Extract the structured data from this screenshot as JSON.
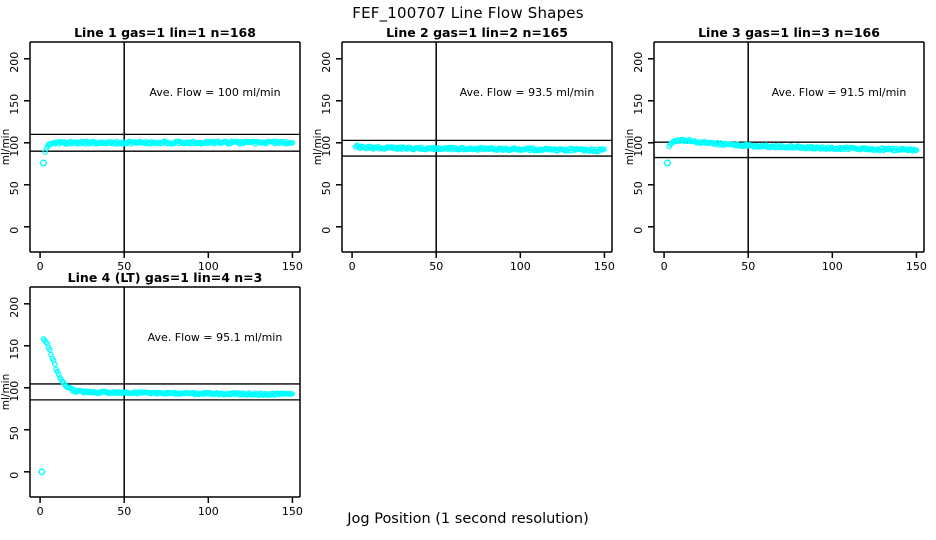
{
  "page_title": "FEF_100707  Line Flow Shapes",
  "x_axis_label": "Jog Position (1 second resolution)",
  "colors": {
    "background": "#ffffff",
    "points": "#00ffff",
    "axis": "#000000",
    "ref_line": "#000000"
  },
  "axes": {
    "xlim": [
      -6,
      154.5
    ],
    "ylim": [
      -30,
      220
    ],
    "x_ticks": [
      0,
      50,
      100,
      150
    ],
    "y_ticks": [
      0,
      50,
      100,
      150,
      200
    ]
  },
  "chart_data": [
    {
      "type": "scatter",
      "title": "Line 1 gas=1 lin=1 n=168",
      "ylabel": "ml/min",
      "annotation": "Ave. Flow =  100  ml/min",
      "ave_flow_ml_min": 100,
      "n": 168,
      "ref_lines_y": [
        110,
        90
      ],
      "vline_x": 50,
      "x_ticks": [
        0,
        50,
        100,
        150
      ],
      "y_ticks": [
        0,
        50,
        100,
        150,
        200
      ],
      "outlier_points": [
        [
          2,
          76
        ]
      ],
      "shape_keypoints": [
        [
          3,
          88
        ],
        [
          4,
          94
        ],
        [
          5,
          97.5
        ],
        [
          6,
          99
        ],
        [
          8,
          100
        ],
        [
          20,
          100.2
        ],
        [
          60,
          100.3
        ],
        [
          100,
          100.2
        ],
        [
          150,
          100.4
        ]
      ],
      "noise_amplitude": 1.6
    },
    {
      "type": "scatter",
      "title": "Line 2 gas=1 lin=2 n=165",
      "ylabel": "ml/min",
      "annotation": "Ave. Flow =  93.5  ml/min",
      "ave_flow_ml_min": 93.5,
      "n": 165,
      "ref_lines_y": [
        102.9,
        84.2
      ],
      "vline_x": 50,
      "x_ticks": [
        0,
        50,
        100,
        150
      ],
      "y_ticks": [
        0,
        50,
        100,
        150,
        200
      ],
      "outlier_points": [],
      "shape_keypoints": [
        [
          2,
          96.5
        ],
        [
          3,
          95.8
        ],
        [
          5,
          95.2
        ],
        [
          8,
          94.6
        ],
        [
          12,
          94.2
        ],
        [
          20,
          93.8
        ],
        [
          40,
          93.3
        ],
        [
          70,
          92.8
        ],
        [
          100,
          92.3
        ],
        [
          125,
          91.8
        ],
        [
          150,
          91.2
        ]
      ],
      "noise_amplitude": 1.5
    },
    {
      "type": "scatter",
      "title": "Line 3 gas=1 lin=3 n=166",
      "ylabel": "ml/min",
      "annotation": "Ave. Flow =  91.5  ml/min",
      "ave_flow_ml_min": 91.5,
      "n": 166,
      "ref_lines_y": [
        100.7,
        82.4
      ],
      "vline_x": 50,
      "x_ticks": [
        0,
        50,
        100,
        150
      ],
      "y_ticks": [
        0,
        50,
        100,
        150,
        200
      ],
      "outlier_points": [
        [
          2,
          76
        ]
      ],
      "shape_keypoints": [
        [
          3,
          95
        ],
        [
          4,
          99.5
        ],
        [
          5,
          101.5
        ],
        [
          7,
          102.8
        ],
        [
          10,
          103.2
        ],
        [
          14,
          102.8
        ],
        [
          20,
          101.2
        ],
        [
          28,
          99.3
        ],
        [
          40,
          97.5
        ],
        [
          55,
          96.2
        ],
        [
          70,
          95.2
        ],
        [
          90,
          94.2
        ],
        [
          110,
          93.2
        ],
        [
          130,
          92.3
        ],
        [
          150,
          91.2
        ]
      ],
      "noise_amplitude": 1.4
    },
    {
      "type": "scatter",
      "title": "Line 4 (LT) gas=1 lin=4 n=3",
      "ylabel": "ml/min",
      "annotation": "Ave. Flow =  95.1  ml/min",
      "ave_flow_ml_min": 95.1,
      "n": 3,
      "ref_lines_y": [
        104.6,
        85.6
      ],
      "vline_x": 50,
      "x_ticks": [
        0,
        50,
        100,
        150
      ],
      "y_ticks": [
        0,
        50,
        100,
        150,
        200
      ],
      "outlier_points": [
        [
          1,
          0
        ]
      ],
      "shape_keypoints": [
        [
          2,
          158
        ],
        [
          3,
          156.5
        ],
        [
          4,
          153.5
        ],
        [
          5,
          149
        ],
        [
          6,
          143.5
        ],
        [
          7,
          137.5
        ],
        [
          8,
          131.5
        ],
        [
          9,
          126
        ],
        [
          10,
          120.5
        ],
        [
          11,
          115.5
        ],
        [
          12,
          111.5
        ],
        [
          13,
          108
        ],
        [
          14,
          105.5
        ],
        [
          15,
          103.2
        ],
        [
          16,
          101.3
        ],
        [
          17,
          99.8
        ],
        [
          18,
          98.5
        ],
        [
          19,
          97.5
        ],
        [
          20,
          96.8
        ],
        [
          22,
          96
        ],
        [
          25,
          95.3
        ],
        [
          30,
          94.8
        ],
        [
          40,
          94.3
        ],
        [
          60,
          93.8
        ],
        [
          90,
          93.2
        ],
        [
          120,
          92.7
        ],
        [
          150,
          92.2
        ]
      ],
      "noise_amplitude": 1.2
    }
  ]
}
